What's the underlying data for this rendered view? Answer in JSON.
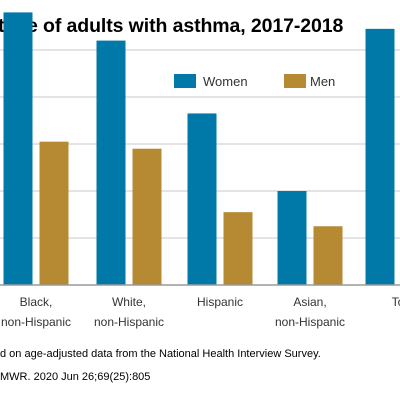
{
  "chart_data": {
    "type": "bar",
    "title": "tage of adults with asthma, 2017-2018",
    "categories": [
      [
        "Black,",
        "non-Hispanic"
      ],
      [
        "White,",
        "non-Hispanic"
      ],
      [
        "Hispanic"
      ],
      [
        "Asian,",
        "non-Hispanic"
      ],
      [
        "To"
      ]
    ],
    "series": [
      {
        "name": "Women",
        "color": "#0078a8",
        "values": [
          11.6,
          10.4,
          7.3,
          4.0,
          10.9
        ]
      },
      {
        "name": "Men",
        "color": "#b58a33",
        "values": [
          6.1,
          5.8,
          3.1,
          2.5,
          null
        ]
      }
    ],
    "ylim": [
      0,
      12
    ],
    "grid": true,
    "gridlines": [
      0,
      2,
      4,
      6,
      8,
      10
    ],
    "gridline_color": "#c8c8c8",
    "legend_position": "top-right",
    "xlabel": "",
    "ylabel": ""
  },
  "footnotes": [
    "d on age-adjusted data from the National Health Interview Survey.",
    "MWR. 2020 Jun 26;69(25):805"
  ]
}
